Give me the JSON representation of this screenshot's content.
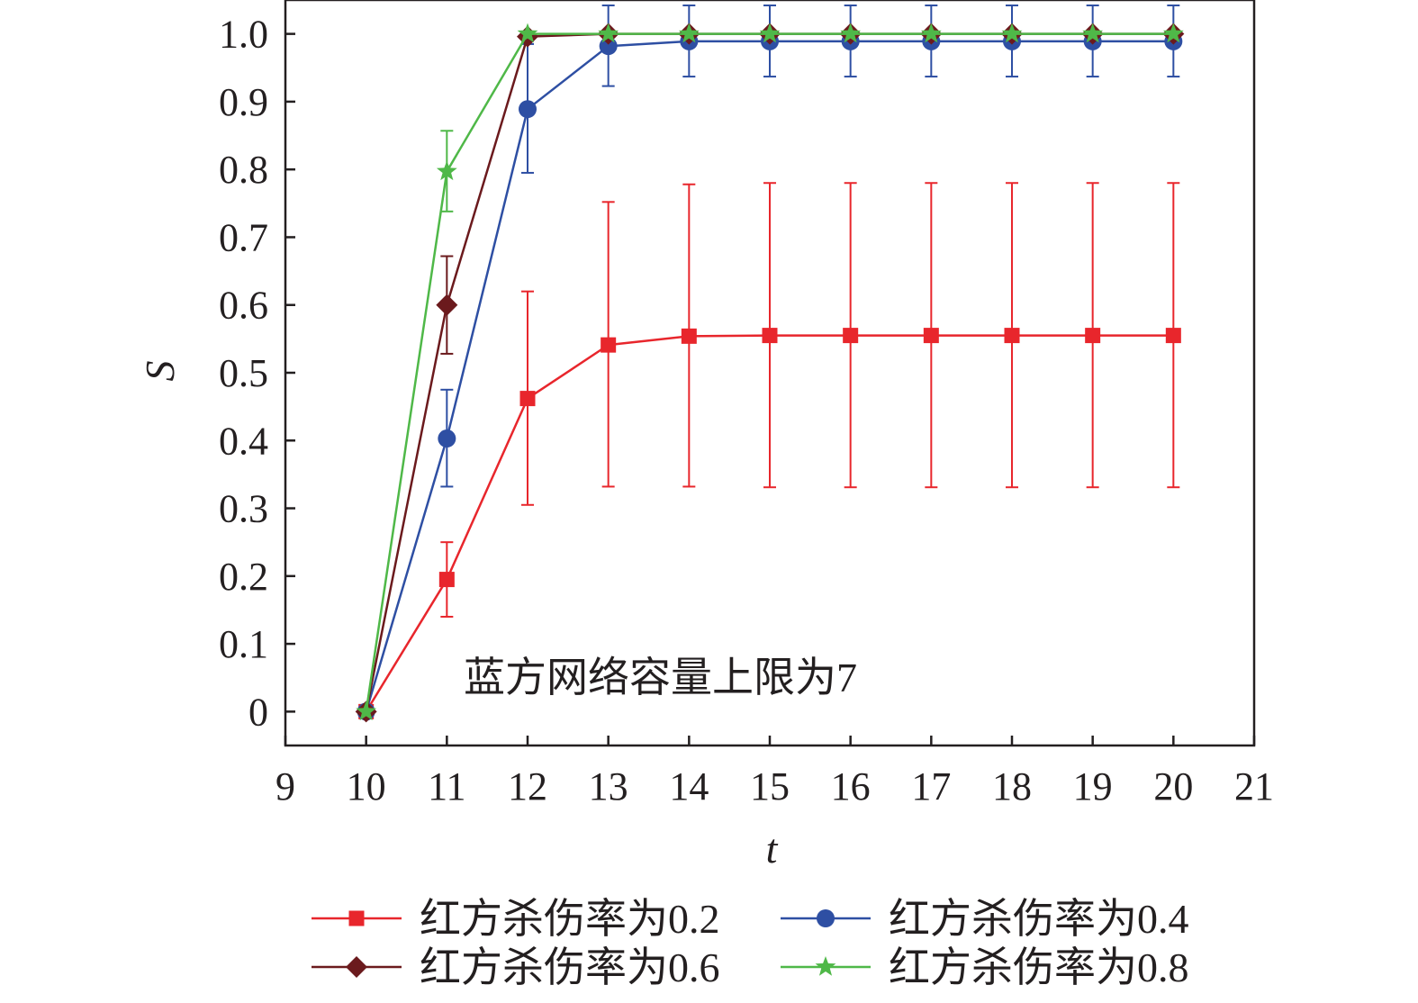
{
  "chart_data": {
    "type": "line",
    "xlabel": "t",
    "ylabel": "S",
    "xlim": [
      9,
      21
    ],
    "ylim": [
      -0.05,
      1.05
    ],
    "x_ticks": [
      9,
      10,
      11,
      12,
      13,
      14,
      15,
      16,
      17,
      18,
      19,
      20,
      21
    ],
    "x_tick_labels": [
      "9",
      "10",
      "11",
      "12",
      "13",
      "14",
      "15",
      "16",
      "17",
      "18",
      "19",
      "20",
      "21"
    ],
    "y_ticks": [
      0,
      0.1,
      0.2,
      0.3,
      0.4,
      0.5,
      0.6,
      0.7,
      0.8,
      0.9,
      1.0
    ],
    "y_tick_labels": [
      "0",
      "0.1",
      "0.2",
      "0.3",
      "0.4",
      "0.5",
      "0.6",
      "0.7",
      "0.8",
      "0.9",
      "1.0"
    ],
    "grid": false,
    "legend_position": "bottom",
    "annotation": "蓝方网络容量上限为7",
    "x": [
      10,
      11,
      12,
      13,
      14,
      15,
      16,
      17,
      18,
      19,
      20
    ],
    "series": [
      {
        "name": "红方杀伤率为0.2",
        "color": "#e8262c",
        "marker": "square",
        "values": [
          0,
          0.195,
          0.462,
          0.541,
          0.554,
          0.555,
          0.555,
          0.555,
          0.555,
          0.555,
          0.555
        ],
        "err_low": [
          0,
          0.14,
          0.305,
          0.332,
          0.332,
          0.331,
          0.331,
          0.331,
          0.331,
          0.331,
          0.331
        ],
        "err_high": [
          0,
          0.25,
          0.62,
          0.752,
          0.778,
          0.78,
          0.78,
          0.78,
          0.78,
          0.78,
          0.78
        ]
      },
      {
        "name": "红方杀伤率为0.4",
        "color": "#2e4fa3",
        "marker": "circle",
        "values": [
          0,
          0.403,
          0.889,
          0.982,
          0.989,
          0.989,
          0.989,
          0.989,
          0.989,
          0.989,
          0.989
        ],
        "err_low": [
          0,
          0.332,
          0.795,
          0.923,
          0.937,
          0.937,
          0.937,
          0.937,
          0.937,
          0.937,
          0.937
        ],
        "err_high": [
          0,
          0.475,
          0.985,
          1.042,
          1.042,
          1.042,
          1.042,
          1.042,
          1.042,
          1.042,
          1.042
        ]
      },
      {
        "name": "红方杀伤率为0.6",
        "color": "#6b1a1d",
        "marker": "diamond",
        "values": [
          0,
          0.6,
          0.996,
          1.0,
          1.0,
          1.0,
          1.0,
          1.0,
          1.0,
          1.0,
          1.0
        ],
        "err_low": [
          0,
          0.528,
          0.996,
          1.0,
          1.0,
          1.0,
          1.0,
          1.0,
          1.0,
          1.0,
          1.0
        ],
        "err_high": [
          0,
          0.672,
          0.996,
          1.0,
          1.0,
          1.0,
          1.0,
          1.0,
          1.0,
          1.0,
          1.0
        ]
      },
      {
        "name": "红方杀伤率为0.8",
        "color": "#4fb848",
        "marker": "star",
        "values": [
          0,
          0.797,
          1.0,
          1.0,
          1.0,
          1.0,
          1.0,
          1.0,
          1.0,
          1.0,
          1.0
        ],
        "err_low": [
          0,
          0.738,
          1.0,
          1.0,
          1.0,
          1.0,
          1.0,
          1.0,
          1.0,
          1.0,
          1.0
        ],
        "err_high": [
          0,
          0.857,
          1.0,
          1.0,
          1.0,
          1.0,
          1.0,
          1.0,
          1.0,
          1.0,
          1.0
        ]
      }
    ]
  }
}
